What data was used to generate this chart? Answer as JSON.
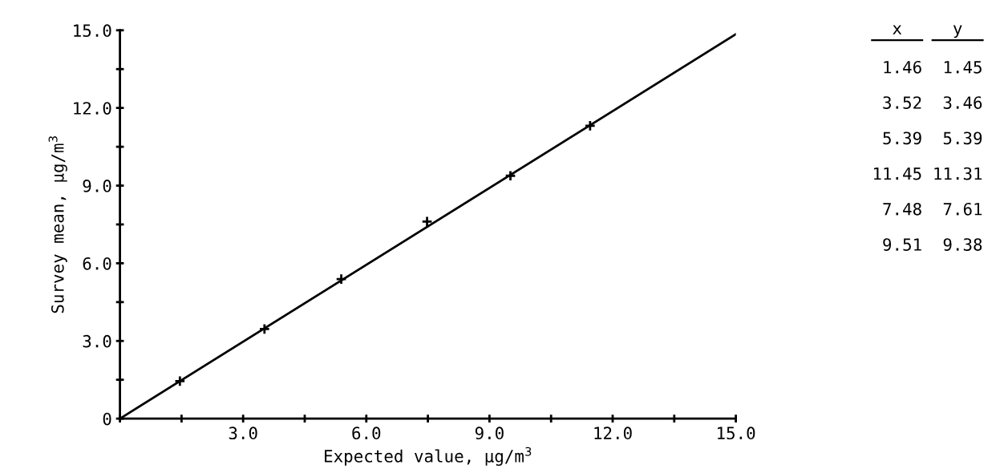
{
  "chart_data": {
    "type": "scatter",
    "xlabel": "Expected value, μg/m$^{3}$",
    "ylabel": "Survey mean, μg/m$^{3}$",
    "series": [
      {
        "color": "#000000",
        "marker": "cross",
        "x": [
          1.46,
          3.52,
          5.39,
          11.45,
          7.48,
          9.51
        ],
        "values": [
          1.45,
          3.46,
          5.39,
          11.31,
          7.61,
          9.38
        ]
      },
      {
        "type": "line",
        "color": "#000000",
        "line_style": "solid",
        "x": [
          0,
          15
        ],
        "values": [
          0,
          14.85
        ]
      }
    ],
    "annotations": [
      "x",
      "y",
      "1.46",
      "1.45",
      "3.52",
      "3.46",
      "5.39",
      "5.39",
      "11.45",
      "11.31",
      "7.48",
      "7.61",
      "9.51",
      "9.38"
    ],
    "xlim": [
      0,
      15
    ],
    "ylim": [
      0,
      15
    ],
    "xticks": [
      {
        "value": 0,
        "label": null
      },
      {
        "value": 1.5,
        "label": null
      },
      {
        "value": 3,
        "label": "3.0"
      },
      {
        "value": 4.5,
        "label": null
      },
      {
        "value": 6,
        "label": "6.0"
      },
      {
        "value": 7.5,
        "label": null
      },
      {
        "value": 9,
        "label": "9.0"
      },
      {
        "value": 10.5,
        "label": null
      },
      {
        "value": 12,
        "label": "12.0"
      },
      {
        "value": 13.5,
        "label": null
      },
      {
        "value": 15,
        "label": "15.0"
      }
    ],
    "yticks": [
      0,
      {
        "value": 1.5,
        "label": null
      },
      {
        "value": 3,
        "label": "3.0"
      },
      {
        "value": 4.5,
        "label": null
      },
      {
        "value": 6,
        "label": "6.0"
      },
      {
        "value": 7.5,
        "label": null
      },
      {
        "value": 9,
        "label": "9.0"
      },
      {
        "value": 10.5,
        "label": null
      },
      {
        "value": 12,
        "label": "12.0"
      },
      {
        "value": 13.5,
        "label": null
      },
      {
        "value": 15,
        "label": "15.0"
      }
    ],
    "grid": false,
    "legend": false
  }
}
